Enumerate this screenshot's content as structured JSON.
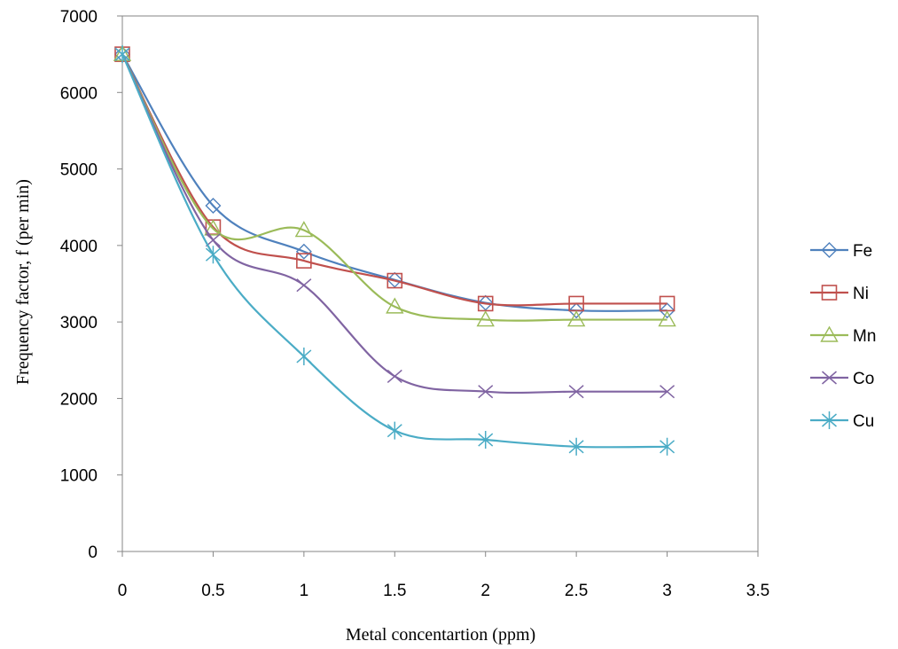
{
  "chart_data": {
    "type": "line",
    "title": "",
    "xlabel": "Metal concentartion (ppm)",
    "ylabel": "Frequency factor, f (per min)",
    "xlim": [
      0,
      3.5
    ],
    "ylim": [
      0,
      7000
    ],
    "x_ticks": [
      "0",
      "0.5",
      "1",
      "1.5",
      "2",
      "2.5",
      "3",
      "3.5"
    ],
    "y_ticks": [
      "0",
      "1000",
      "2000",
      "3000",
      "4000",
      "5000",
      "6000",
      "7000"
    ],
    "x": [
      0,
      0.5,
      1,
      1.5,
      2,
      2.5,
      3
    ],
    "grid": false,
    "legend_position": "right",
    "smoothed": true,
    "series": [
      {
        "name": "Fe",
        "values": [
          6500,
          4520,
          3920,
          3550,
          3250,
          3150,
          3150
        ],
        "color": "#4f81bd",
        "marker": "diamond"
      },
      {
        "name": "Ni",
        "values": [
          6500,
          4240,
          3800,
          3540,
          3240,
          3240,
          3240
        ],
        "color": "#c0504d",
        "marker": "square"
      },
      {
        "name": "Mn",
        "values": [
          6500,
          4220,
          4200,
          3200,
          3030,
          3030,
          3030
        ],
        "color": "#9bbb59",
        "marker": "triangle"
      },
      {
        "name": "Co",
        "values": [
          6500,
          4070,
          3480,
          2290,
          2090,
          2090,
          2090
        ],
        "color": "#8064a2",
        "marker": "x"
      },
      {
        "name": "Cu",
        "values": [
          6500,
          3880,
          2550,
          1580,
          1460,
          1370,
          1370
        ],
        "color": "#4bacc6",
        "marker": "star"
      }
    ]
  }
}
